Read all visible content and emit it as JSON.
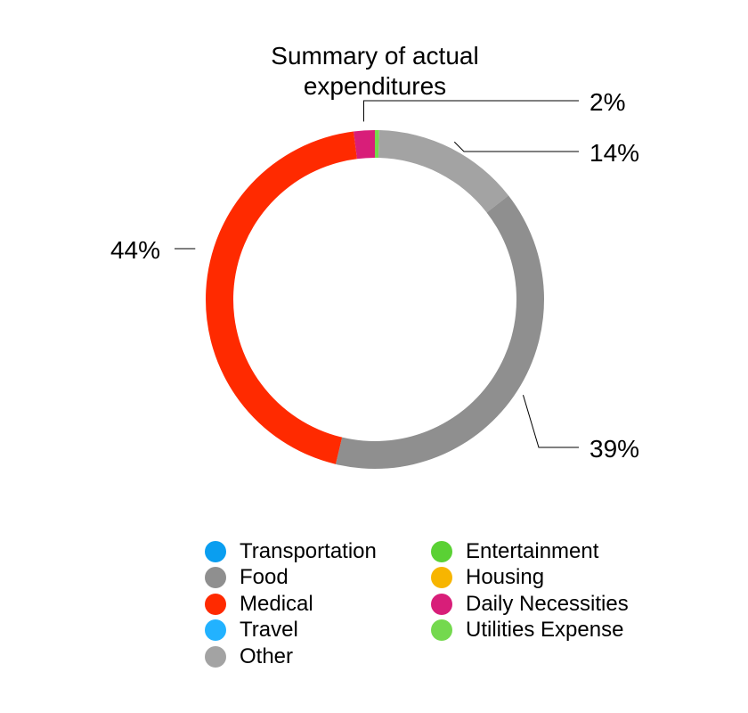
{
  "chart_data": {
    "type": "pie",
    "style": "donut",
    "title": "Summary of actual expenditures",
    "series": [
      {
        "name": "Transportation",
        "value": 0,
        "color": "#0a9ef0"
      },
      {
        "name": "Food",
        "value": 39,
        "color": "#8f8f8f"
      },
      {
        "name": "Medical",
        "value": 44,
        "color": "#ff2a00"
      },
      {
        "name": "Travel",
        "value": 0,
        "color": "#22b2ff"
      },
      {
        "name": "Other",
        "value": 14,
        "color": "#a3a3a3"
      },
      {
        "name": "Entertainment",
        "value": 0,
        "color": "#5ad134"
      },
      {
        "name": "Housing",
        "value": 0,
        "color": "#f7b500"
      },
      {
        "name": "Daily Necessities",
        "value": 2,
        "color": "#d81e79"
      },
      {
        "name": "Utilities Expense",
        "value": 0.4,
        "color": "#74d94e"
      }
    ],
    "data_labels": [
      {
        "category": "Daily Necessities",
        "text": "2%"
      },
      {
        "category": "Other",
        "text": "14%"
      },
      {
        "category": "Food",
        "text": "39%"
      },
      {
        "category": "Medical",
        "text": "44%"
      }
    ],
    "legend": {
      "placement": "bottom",
      "columns": 2
    }
  }
}
